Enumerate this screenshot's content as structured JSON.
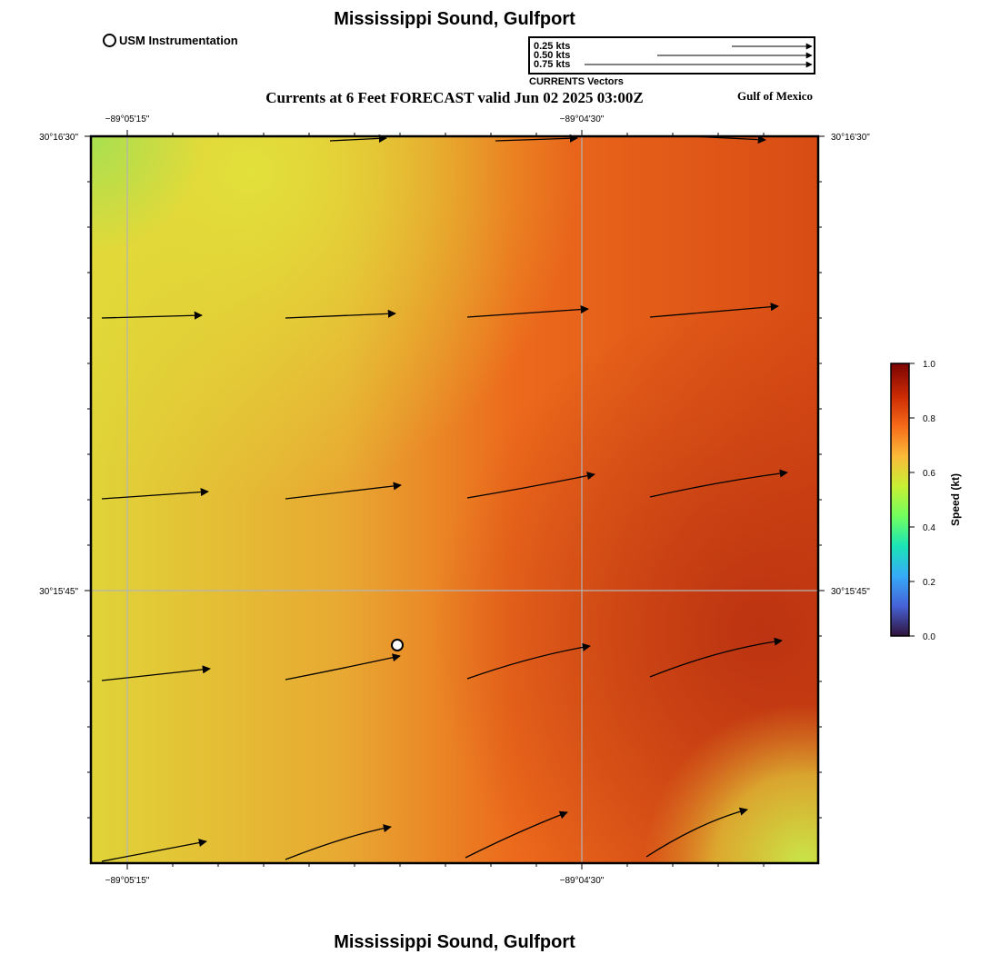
{
  "title": "Mississippi Sound, Gulfport",
  "footer_title": "Mississippi Sound, Gulfport",
  "subtitle": "Currents at 6 Feet FORECAST valid Jun 02 2025 03:00Z",
  "region_label": "Gulf of Mexico",
  "legend": {
    "usm_label": "USM Instrumentation"
  },
  "vector_key": {
    "caption": "CURRENTS Vectors",
    "entries": [
      {
        "label": "0.25 kts",
        "speed": 0.25
      },
      {
        "label": "0.50 kts",
        "speed": 0.5
      },
      {
        "label": "0.75 kts",
        "speed": 0.75
      }
    ]
  },
  "axes": {
    "x_ticks": [
      "−89°05'15\"",
      "−89°04'30\""
    ],
    "y_ticks": [
      "30°16'30\"",
      "30°15'45\""
    ]
  },
  "colorbar": {
    "label": "Speed (kt)",
    "ticks": [
      "0.0",
      "0.2",
      "0.4",
      "0.6",
      "0.8",
      "1.0"
    ],
    "range": [
      0,
      1.0
    ],
    "colors": [
      "#30123b",
      "#4662d7",
      "#36aaf9",
      "#1ae4b6",
      "#72fe5e",
      "#c8ef34",
      "#faba39",
      "#f66b19",
      "#cb2a04",
      "#7a0403"
    ]
  },
  "map_colors": {
    "yellow": "#e2e03a",
    "green": "#a8e050",
    "light_orange": "#e8a030",
    "orange": "#ec6418",
    "dark_red": "#c03810",
    "light_green": "#c8e648"
  }
}
